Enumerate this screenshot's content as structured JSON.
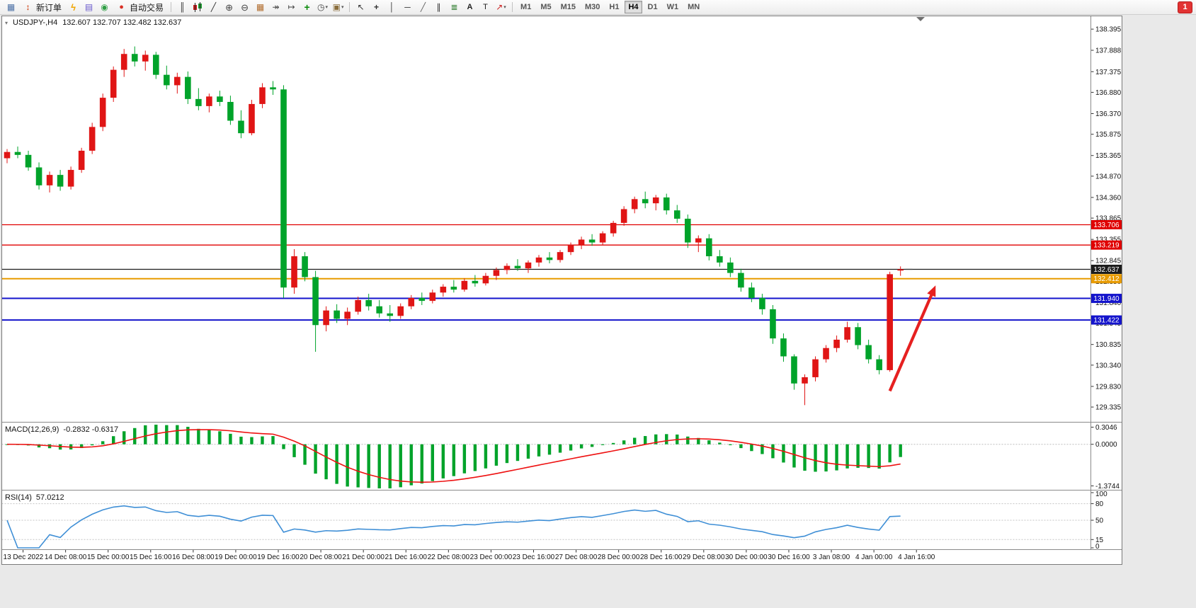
{
  "toolbar": {
    "items": [
      {
        "type": "icon",
        "name": "new-chart",
        "icon": "nc"
      },
      {
        "type": "button",
        "name": "new-order",
        "icon": "no",
        "label": "新订单"
      },
      {
        "type": "icon",
        "name": "metaeditor",
        "icon": "me"
      },
      {
        "type": "icon",
        "name": "data-window",
        "icon": "dw"
      },
      {
        "type": "icon",
        "name": "market-watch",
        "icon": "mw"
      },
      {
        "type": "button",
        "name": "autotrading",
        "icon": "at",
        "label": "自动交易"
      },
      {
        "type": "sep"
      },
      {
        "type": "icon",
        "name": "bar-chart",
        "icon": "bar"
      },
      {
        "type": "icon",
        "name": "candlestick-chart",
        "icon": "candle"
      },
      {
        "type": "icon",
        "name": "line-chart",
        "icon": "line"
      },
      {
        "type": "icon",
        "name": "zoom-in",
        "icon": "zi"
      },
      {
        "type": "icon",
        "name": "zoom-out",
        "icon": "zo"
      },
      {
        "type": "icon",
        "name": "tile-windows",
        "icon": "tile"
      },
      {
        "type": "icon",
        "name": "auto-scroll",
        "icon": "ascr"
      },
      {
        "type": "icon",
        "name": "chart-shift",
        "icon": "cshift"
      },
      {
        "type": "icon",
        "name": "indicators",
        "icon": "ind"
      },
      {
        "type": "icon",
        "name": "periods",
        "icon": "per",
        "caret": true
      },
      {
        "type": "icon",
        "name": "templates",
        "icon": "tpl",
        "caret": true
      },
      {
        "type": "sep"
      },
      {
        "type": "icon",
        "name": "cursor",
        "icon": "cur"
      },
      {
        "type": "icon",
        "name": "crosshair",
        "icon": "cross"
      },
      {
        "type": "icon",
        "name": "vertical-line",
        "icon": "vline"
      },
      {
        "type": "icon",
        "name": "horizontal-line",
        "icon": "hline"
      },
      {
        "type": "icon",
        "name": "trendline",
        "icon": "tline"
      },
      {
        "type": "icon",
        "name": "equidistant-channel",
        "icon": "chan"
      },
      {
        "type": "icon",
        "name": "fibonacci",
        "icon": "fib"
      },
      {
        "type": "icon",
        "name": "text",
        "icon": "txt"
      },
      {
        "type": "icon",
        "name": "text-label",
        "icon": "tlabel"
      },
      {
        "type": "icon",
        "name": "arrows",
        "icon": "arrw",
        "caret": true
      },
      {
        "type": "sep"
      }
    ],
    "periods": [
      "M1",
      "M5",
      "M15",
      "M30",
      "H1",
      "H4",
      "D1",
      "W1",
      "MN"
    ],
    "active_period": "H4",
    "notification_badge": "1"
  },
  "chart": {
    "symbol_timeframe": "USDJPY-,H4",
    "ohlc_text": "132.607 132.707 132.482 132.637"
  },
  "chart_data": {
    "type": "candlestick",
    "symbol": "USDJPY-",
    "timeframe": "H4",
    "up_color": "#e01515",
    "down_color": "#00a32a",
    "ylim": [
      128.98,
      138.72
    ],
    "price_axis_ticks": [
      "138.395",
      "137.888",
      "137.375",
      "136.880",
      "136.370",
      "135.875",
      "135.365",
      "134.870",
      "134.360",
      "133.865",
      "133.355",
      "132.845",
      "132.350",
      "131.840",
      "131.345",
      "130.835",
      "130.340",
      "129.830",
      "129.335"
    ],
    "time_labels": [
      "13 Dec 2022",
      "14 Dec 08:00",
      "15 Dec 00:00",
      "15 Dec 16:00",
      "16 Dec 08:00",
      "19 Dec 00:00",
      "19 Dec 16:00",
      "20 Dec 08:00",
      "21 Dec 00:00",
      "21 Dec 16:00",
      "22 Dec 08:00",
      "23 Dec 00:00",
      "23 Dec 16:00",
      "27 Dec 08:00",
      "28 Dec 00:00",
      "28 Dec 16:00",
      "29 Dec 08:00",
      "30 Dec 00:00",
      "30 Dec 16:00",
      "3 Jan 08:00",
      "4 Jan 00:00",
      "4 Jan 16:00"
    ],
    "candles": [
      [
        135.3,
        135.52,
        135.18,
        135.45
      ],
      [
        135.45,
        135.58,
        135.3,
        135.38
      ],
      [
        135.38,
        135.48,
        135.0,
        135.08
      ],
      [
        135.08,
        135.2,
        134.55,
        134.65
      ],
      [
        134.65,
        134.98,
        134.48,
        134.9
      ],
      [
        134.9,
        135.02,
        134.52,
        134.62
      ],
      [
        134.62,
        135.1,
        134.55,
        135.02
      ],
      [
        135.02,
        135.55,
        134.95,
        135.48
      ],
      [
        135.48,
        136.15,
        135.4,
        136.05
      ],
      [
        136.05,
        136.85,
        135.95,
        136.75
      ],
      [
        136.75,
        137.5,
        136.65,
        137.42
      ],
      [
        137.42,
        137.92,
        137.25,
        137.8
      ],
      [
        137.8,
        137.98,
        137.5,
        137.62
      ],
      [
        137.62,
        137.88,
        137.4,
        137.78
      ],
      [
        137.78,
        137.85,
        137.2,
        137.3
      ],
      [
        137.3,
        137.52,
        136.95,
        137.05
      ],
      [
        137.05,
        137.35,
        136.85,
        137.25
      ],
      [
        137.25,
        137.38,
        136.6,
        136.72
      ],
      [
        136.72,
        136.98,
        136.45,
        136.55
      ],
      [
        136.55,
        136.85,
        136.4,
        136.78
      ],
      [
        136.78,
        136.92,
        136.55,
        136.65
      ],
      [
        136.65,
        136.8,
        136.1,
        136.2
      ],
      [
        136.2,
        136.45,
        135.78,
        135.9
      ],
      [
        135.9,
        136.7,
        135.85,
        136.6
      ],
      [
        136.6,
        137.1,
        136.5,
        137.0
      ],
      [
        137.0,
        137.15,
        136.82,
        136.95
      ],
      [
        136.95,
        137.05,
        131.95,
        132.2
      ],
      [
        132.2,
        133.12,
        132.05,
        132.95
      ],
      [
        132.95,
        133.05,
        132.35,
        132.45
      ],
      [
        132.45,
        132.6,
        130.66,
        131.3
      ],
      [
        131.3,
        131.75,
        131.15,
        131.65
      ],
      [
        131.65,
        131.8,
        131.35,
        131.45
      ],
      [
        131.45,
        131.72,
        131.3,
        131.62
      ],
      [
        131.62,
        131.98,
        131.55,
        131.9
      ],
      [
        131.9,
        132.05,
        131.65,
        131.75
      ],
      [
        131.75,
        131.9,
        131.48,
        131.58
      ],
      [
        131.58,
        131.78,
        131.38,
        131.52
      ],
      [
        131.52,
        131.82,
        131.45,
        131.75
      ],
      [
        131.75,
        132.02,
        131.68,
        131.95
      ],
      [
        131.95,
        132.08,
        131.78,
        131.88
      ],
      [
        131.88,
        132.15,
        131.82,
        132.08
      ],
      [
        132.08,
        132.28,
        131.98,
        132.22
      ],
      [
        132.22,
        132.38,
        132.08,
        132.15
      ],
      [
        132.15,
        132.42,
        132.1,
        132.36
      ],
      [
        132.36,
        132.5,
        132.22,
        132.3
      ],
      [
        132.3,
        132.55,
        132.25,
        132.48
      ],
      [
        132.48,
        132.68,
        132.38,
        132.62
      ],
      [
        132.62,
        132.78,
        132.52,
        132.72
      ],
      [
        132.72,
        132.88,
        132.6,
        132.66
      ],
      [
        132.66,
        132.85,
        132.55,
        132.8
      ],
      [
        132.8,
        132.98,
        132.7,
        132.92
      ],
      [
        132.92,
        133.05,
        132.78,
        132.86
      ],
      [
        132.86,
        133.1,
        132.8,
        133.05
      ],
      [
        133.05,
        133.28,
        132.98,
        133.22
      ],
      [
        133.22,
        133.42,
        133.12,
        133.35
      ],
      [
        133.35,
        133.48,
        133.2,
        133.28
      ],
      [
        133.28,
        133.55,
        133.22,
        133.5
      ],
      [
        133.5,
        133.8,
        133.42,
        133.75
      ],
      [
        133.75,
        134.15,
        133.68,
        134.08
      ],
      [
        134.08,
        134.38,
        133.98,
        134.32
      ],
      [
        134.32,
        134.5,
        134.1,
        134.22
      ],
      [
        134.22,
        134.42,
        134.05,
        134.36
      ],
      [
        134.36,
        134.45,
        133.95,
        134.05
      ],
      [
        134.05,
        134.18,
        133.75,
        133.85
      ],
      [
        133.85,
        133.95,
        133.15,
        133.28
      ],
      [
        133.28,
        133.45,
        133.05,
        133.38
      ],
      [
        133.38,
        133.48,
        132.85,
        132.95
      ],
      [
        132.95,
        133.1,
        132.7,
        132.8
      ],
      [
        132.8,
        132.92,
        132.45,
        132.55
      ],
      [
        132.55,
        132.65,
        132.1,
        132.2
      ],
      [
        132.2,
        132.32,
        131.85,
        131.95
      ],
      [
        131.95,
        132.05,
        131.55,
        131.68
      ],
      [
        131.68,
        131.78,
        130.85,
        130.98
      ],
      [
        130.98,
        131.1,
        130.42,
        130.55
      ],
      [
        130.55,
        130.6,
        129.75,
        129.9
      ],
      [
        129.9,
        130.12,
        129.38,
        130.05
      ],
      [
        130.05,
        130.55,
        129.95,
        130.48
      ],
      [
        130.48,
        130.82,
        130.4,
        130.75
      ],
      [
        130.75,
        131.05,
        130.65,
        130.95
      ],
      [
        130.95,
        131.38,
        130.88,
        131.25
      ],
      [
        131.25,
        131.35,
        130.72,
        130.82
      ],
      [
        130.82,
        130.95,
        130.38,
        130.48
      ],
      [
        130.48,
        130.58,
        130.12,
        130.22
      ],
      [
        130.22,
        132.58,
        130.18,
        132.52
      ],
      [
        132.607,
        132.707,
        132.482,
        132.637
      ]
    ],
    "hlines": [
      {
        "price": 133.706,
        "label": "133.706",
        "color": "#e00000",
        "width": 1.3
      },
      {
        "price": 133.219,
        "label": "133.219",
        "color": "#e00000",
        "width": 1.3
      },
      {
        "price": 132.637,
        "label": "132.637",
        "color": "#1c1c1c",
        "width": 1.2
      },
      {
        "price": 132.412,
        "label": "132.412",
        "color": "#e89b00",
        "width": 2
      },
      {
        "price": 131.94,
        "label": "131.940",
        "color": "#1414cc",
        "width": 2
      },
      {
        "price": 131.422,
        "label": "131.422",
        "color": "#1414cc",
        "width": 2
      }
    ],
    "annotation_arrow": {
      "from_index": 83.0,
      "from_price": 129.72,
      "to_index": 87.3,
      "to_price": 132.25,
      "color": "#e62020"
    },
    "indicators": {
      "macd": {
        "name": "MACD(12,26,9)",
        "values_text": "-0.2832 -0.6317",
        "fast": 12,
        "slow": 26,
        "signal": 9,
        "axis_labels": [
          "0.3046",
          "0.0000",
          "-1.3744"
        ],
        "histogram_color": "#00a32a",
        "signal_color": "#ee1111"
      },
      "rsi": {
        "name": "RSI(14)",
        "value_text": "57.0212",
        "period": 14,
        "axis_labels": [
          "100",
          "80",
          "50",
          "15",
          "0"
        ],
        "axis_values": [
          100,
          80,
          50,
          15,
          0
        ],
        "level_lines": [
          80,
          50,
          15
        ],
        "line_color": "#3f8fd6"
      }
    }
  }
}
